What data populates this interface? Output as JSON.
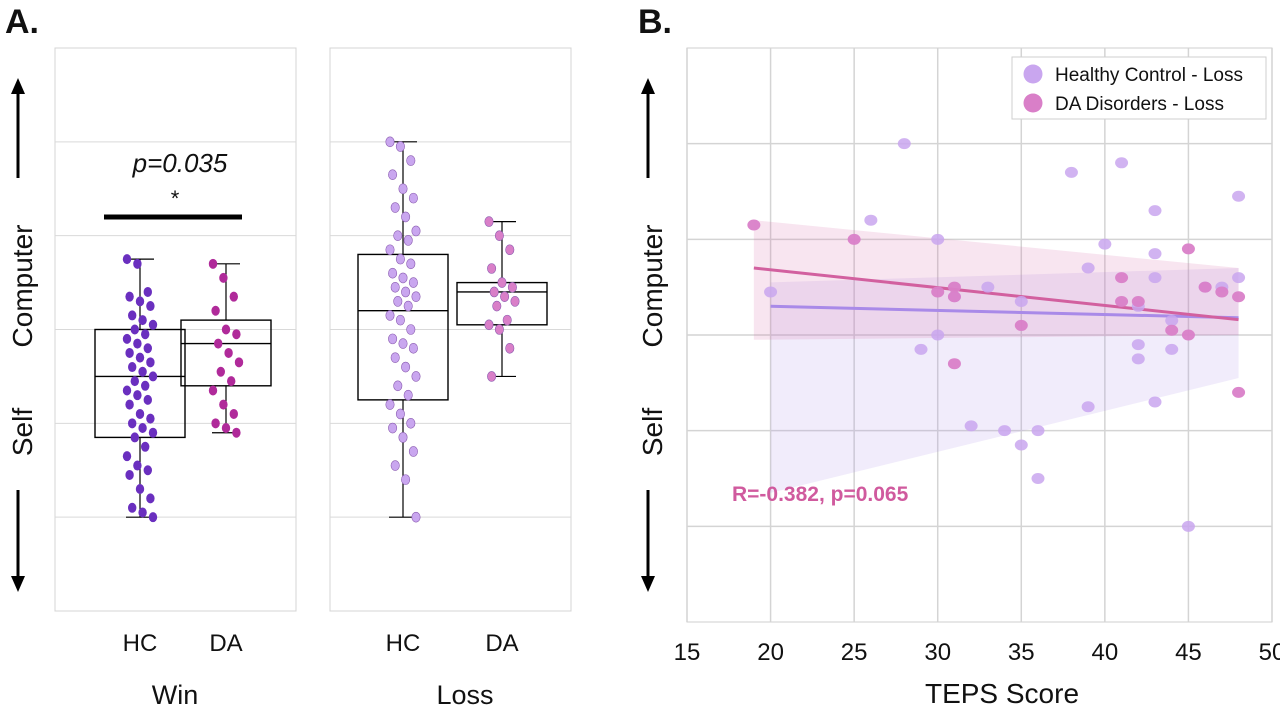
{
  "panel_a": {
    "label": "A.",
    "axis_words": {
      "top": "Computer",
      "bottom": "Self"
    },
    "sig": {
      "p_text": "p=0.035",
      "star": "*"
    }
  },
  "panel_b": {
    "label": "B.",
    "axis_words": {
      "top": "Computer",
      "bottom": "Self"
    }
  },
  "colors": {
    "hc_dark": "#6a2fbf",
    "da_dark": "#b02a9a",
    "hc_light": "#c9a6ef",
    "da_light": "#d97fc8",
    "hc_line": "#a98ae8",
    "da_line": "#d2609f",
    "annotation": "#d05a9e"
  },
  "chart_data": [
    {
      "type": "box",
      "facet": "Win",
      "categories": [
        "HC",
        "DA"
      ],
      "xlabel": "Win",
      "ylim": [
        0,
        6
      ],
      "grid": true,
      "boxes": [
        {
          "name": "HC",
          "min": 1.0,
          "q1": 1.85,
          "median": 2.5,
          "q3": 3.0,
          "max": 3.75
        },
        {
          "name": "DA",
          "min": 1.9,
          "q1": 2.4,
          "median": 2.85,
          "q3": 3.1,
          "max": 3.7
        }
      ],
      "points": {
        "HC": [
          3.75,
          3.7,
          3.4,
          3.35,
          3.3,
          3.25,
          3.15,
          3.1,
          3.05,
          3.0,
          2.95,
          2.9,
          2.85,
          2.8,
          2.75,
          2.7,
          2.65,
          2.6,
          2.55,
          2.5,
          2.45,
          2.4,
          2.35,
          2.3,
          2.25,
          2.2,
          2.1,
          2.05,
          2.0,
          1.95,
          1.9,
          1.85,
          1.75,
          1.65,
          1.55,
          1.5,
          1.45,
          1.3,
          1.2,
          1.1,
          1.05,
          1.0
        ],
        "DA": [
          3.7,
          3.55,
          3.35,
          3.2,
          3.0,
          2.95,
          2.85,
          2.75,
          2.65,
          2.55,
          2.45,
          2.35,
          2.2,
          2.1,
          2.0,
          1.95,
          1.9
        ]
      },
      "annotation": {
        "text": "p=0.035",
        "star": "*",
        "y": 4.3
      }
    },
    {
      "type": "box",
      "facet": "Loss",
      "categories": [
        "HC",
        "DA"
      ],
      "xlabel": "Loss",
      "ylim": [
        0,
        6
      ],
      "grid": true,
      "boxes": [
        {
          "name": "HC",
          "min": 1.0,
          "q1": 2.25,
          "median": 3.2,
          "q3": 3.8,
          "max": 5.0
        },
        {
          "name": "DA",
          "min": 2.5,
          "q1": 3.05,
          "median": 3.4,
          "q3": 3.5,
          "max": 4.15
        }
      ],
      "points": {
        "HC": [
          5.0,
          4.95,
          4.8,
          4.65,
          4.5,
          4.4,
          4.3,
          4.2,
          4.05,
          4.0,
          3.95,
          3.85,
          3.75,
          3.7,
          3.6,
          3.55,
          3.5,
          3.45,
          3.4,
          3.35,
          3.3,
          3.25,
          3.15,
          3.1,
          3.0,
          2.9,
          2.85,
          2.8,
          2.7,
          2.6,
          2.5,
          2.4,
          2.3,
          2.2,
          2.1,
          2.0,
          1.95,
          1.85,
          1.7,
          1.55,
          1.4,
          1.0
        ],
        "DA": [
          4.15,
          4.0,
          3.85,
          3.65,
          3.5,
          3.45,
          3.4,
          3.35,
          3.3,
          3.25,
          3.1,
          3.05,
          3.0,
          2.8,
          2.5
        ]
      }
    },
    {
      "type": "scatter",
      "xlabel": "TEPS Score",
      "ylabel": "",
      "xlim": [
        15,
        50
      ],
      "x_ticks": [
        15,
        20,
        25,
        30,
        35,
        40,
        45,
        50
      ],
      "ylim": [
        0,
        6
      ],
      "grid": true,
      "legend": {
        "position": "top-right"
      },
      "series": [
        {
          "name": "Healthy Control - Loss",
          "points": [
            [
              20,
              3.45
            ],
            [
              26,
              4.2
            ],
            [
              28,
              5.0
            ],
            [
              29,
              2.85
            ],
            [
              30,
              3.0
            ],
            [
              30,
              4.0
            ],
            [
              31,
              3.4
            ],
            [
              32,
              2.05
            ],
            [
              33,
              3.5
            ],
            [
              34,
              2.0
            ],
            [
              35,
              3.35
            ],
            [
              35,
              1.85
            ],
            [
              36,
              2.0
            ],
            [
              36,
              1.5
            ],
            [
              38,
              4.7
            ],
            [
              39,
              3.7
            ],
            [
              39,
              2.25
            ],
            [
              40,
              3.95
            ],
            [
              41,
              4.8
            ],
            [
              42,
              3.3
            ],
            [
              42,
              2.9
            ],
            [
              42,
              2.75
            ],
            [
              43,
              4.3
            ],
            [
              43,
              3.85
            ],
            [
              43,
              3.6
            ],
            [
              43,
              2.3
            ],
            [
              44,
              3.15
            ],
            [
              44,
              2.85
            ],
            [
              45,
              1.0
            ],
            [
              46,
              3.5
            ],
            [
              47,
              3.5
            ],
            [
              48,
              4.45
            ],
            [
              48,
              3.6
            ]
          ]
        },
        {
          "name": "DA Disorders - Loss",
          "points": [
            [
              19,
              4.15
            ],
            [
              25,
              4.0
            ],
            [
              30,
              3.45
            ],
            [
              31,
              3.5
            ],
            [
              31,
              3.4
            ],
            [
              31,
              2.7
            ],
            [
              35,
              3.1
            ],
            [
              41,
              3.35
            ],
            [
              41,
              3.6
            ],
            [
              42,
              3.35
            ],
            [
              44,
              3.05
            ],
            [
              45,
              3.0
            ],
            [
              45,
              3.9
            ],
            [
              46,
              3.5
            ],
            [
              47,
              3.45
            ],
            [
              48,
              3.4
            ],
            [
              48,
              2.4
            ]
          ]
        }
      ],
      "fits": [
        {
          "series": "Healthy Control - Loss",
          "x": [
            20,
            48
          ],
          "y": [
            3.3,
            3.18
          ],
          "ci_upper": [
            3.55,
            3.7
          ],
          "ci_lower": [
            1.35,
            2.55
          ]
        },
        {
          "series": "DA Disorders - Loss",
          "x": [
            19,
            48
          ],
          "y": [
            3.7,
            3.16
          ],
          "ci_upper": [
            4.2,
            3.7
          ],
          "ci_lower": [
            2.95,
            3.0
          ]
        }
      ],
      "annotation": {
        "text": "R=-0.382, p=0.065",
        "x": 20,
        "y": 1.35
      }
    }
  ]
}
